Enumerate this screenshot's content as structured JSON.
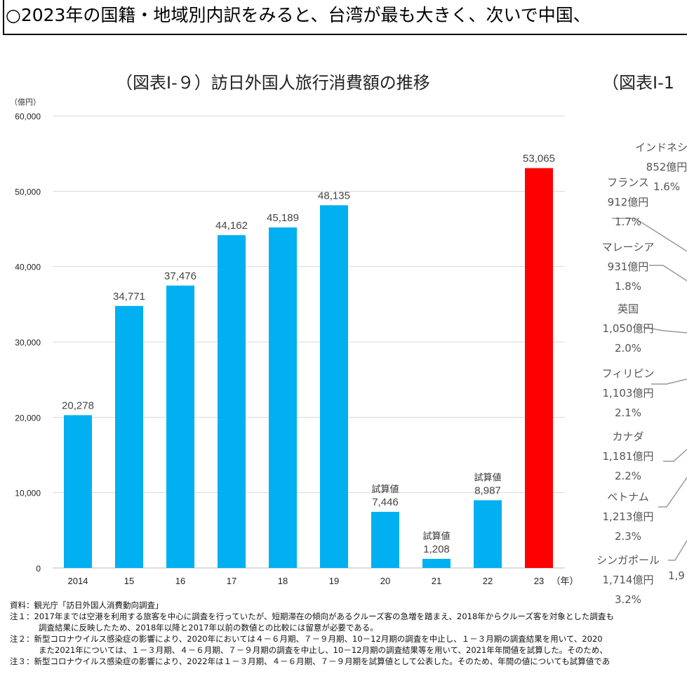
{
  "headline": "○2023年の国籍・地域別内訳をみると、台湾が最も大きく、次いで中国、",
  "chart_data": {
    "type": "bar",
    "title": "（図表Ⅰ-９）訪日外国人旅行消費額の推移",
    "ylabel": "（億円）",
    "xlabel": "（年）",
    "ylim": [
      0,
      60000
    ],
    "yticks": [
      "0",
      "10,000",
      "20,000",
      "30,000",
      "40,000",
      "50,000",
      "60,000"
    ],
    "grid": true,
    "categories": [
      "2014",
      "15",
      "16",
      "17",
      "18",
      "19",
      "20",
      "21",
      "22",
      "23"
    ],
    "values": [
      20278,
      34771,
      37476,
      44162,
      45189,
      48135,
      7446,
      1208,
      8987,
      53065
    ],
    "value_labels": [
      "20,278",
      "34,771",
      "37,476",
      "44,162",
      "45,189",
      "48,135",
      "7,446",
      "1,208",
      "8,987",
      "53,065"
    ],
    "annotations": [
      "",
      "",
      "",
      "",
      "",
      "",
      "試算値",
      "試算値",
      "試算値",
      ""
    ],
    "colors": {
      "default": "#00b0f0",
      "highlight": "#ff0000"
    },
    "highlight_index": 9
  },
  "right_chart": {
    "title": "（図表Ⅰ-1",
    "labels": [
      {
        "name": "インドネシア",
        "amount": "852億円",
        "share": "1.6%"
      },
      {
        "name": "フランス",
        "amount": "912億円",
        "share": "1.7%"
      },
      {
        "name": "マレーシア",
        "amount": "931億円",
        "share": "1.8%"
      },
      {
        "name": "英国",
        "amount": "1,050億円",
        "share": "2.0%"
      },
      {
        "name": "フィリピン",
        "amount": "1,103億円",
        "share": "2.1%"
      },
      {
        "name": "カナダ",
        "amount": "1,181億円",
        "share": "2.2%"
      },
      {
        "name": "ベトナム",
        "amount": "1,213億円",
        "share": "2.3%"
      },
      {
        "name": "シンガポール",
        "amount": "1,714億円",
        "share": "3.2%"
      }
    ],
    "clipped_label": "1,9"
  },
  "notes": {
    "source": "資料：観光庁「訪日外国人消費動向調査」",
    "note1a": "注１：2017年までは空港を利用する旅客を中心に調査を行っていたが、短期滞在の傾向があるクルーズ客の急増を踏まえ、2018年からクルーズ客を対象とした調査も",
    "note1b": "調査結果に反映したため、2018年以降と2017年以前の数値との比較には留意が必要である。",
    "note2a": "注２：新型コロナウイルス感染症の影響により、2020年においては４－６月期、７－９月期、10－12月期の調査を中止し、１－３月期の調査結果を用いて、2020",
    "note2b": "また2021年については、１－３月期、４－６月期、７－９月期の調査を中止し、10－12月期の調査結果等を用いて、2021年年間値を試算した。そのため、",
    "note3": "注３：新型コロナウイルス感染症の影響により、2022年は１－３月期、４－６月期、７－９月期を試算値として公表した。そのため、年間の値についても試算値であ"
  }
}
